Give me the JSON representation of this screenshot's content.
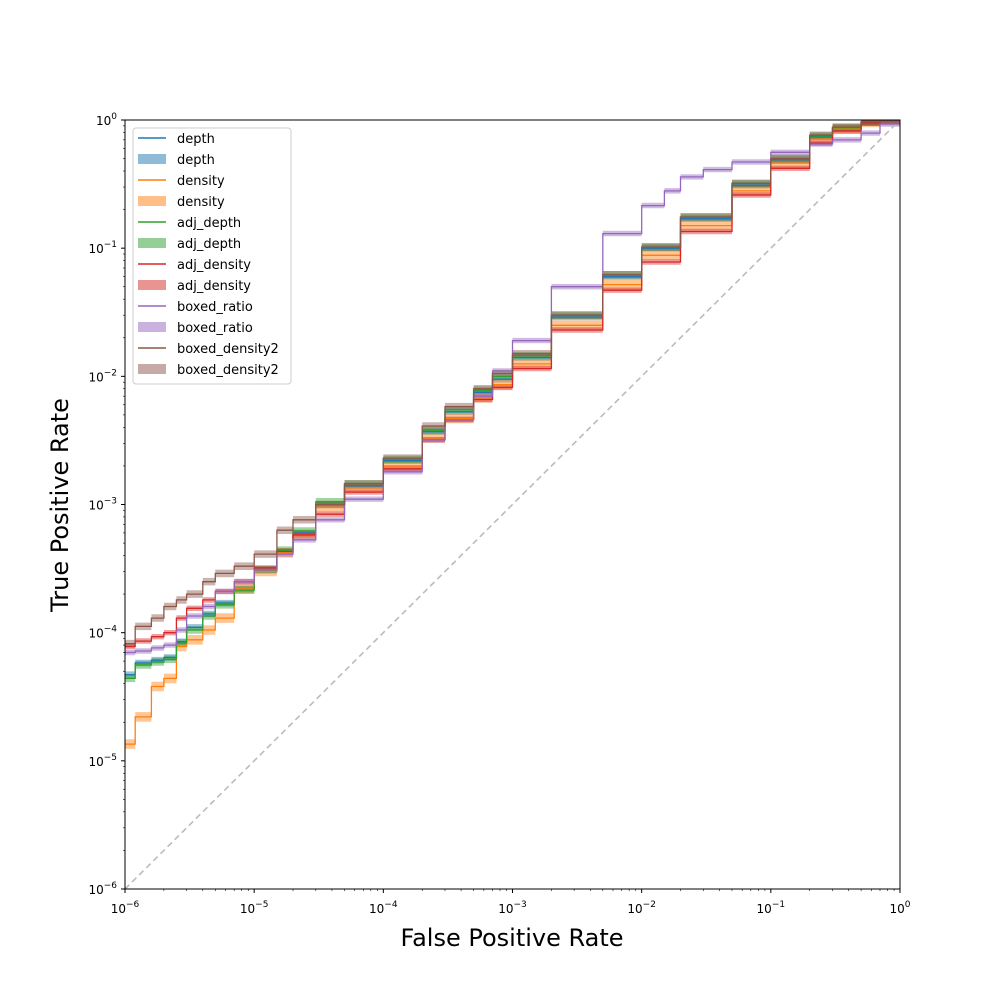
{
  "chart_data": {
    "type": "line",
    "xlabel": "False Positive Rate",
    "ylabel": "True Positive Rate",
    "xscale": "log",
    "yscale": "log",
    "xlim": [
      1e-06,
      1
    ],
    "ylim": [
      1e-06,
      1
    ],
    "grid": false,
    "legend_position": "top-left",
    "x_ticks": [
      {
        "value": 1e-06,
        "base": "10",
        "exp": "−6"
      },
      {
        "value": 1e-05,
        "base": "10",
        "exp": "−5"
      },
      {
        "value": 0.0001,
        "base": "10",
        "exp": "−4"
      },
      {
        "value": 0.001,
        "base": "10",
        "exp": "−3"
      },
      {
        "value": 0.01,
        "base": "10",
        "exp": "−2"
      },
      {
        "value": 0.1,
        "base": "10",
        "exp": "−1"
      },
      {
        "value": 1,
        "base": "10",
        "exp": "0"
      }
    ],
    "y_ticks": [
      {
        "value": 1e-06,
        "base": "10",
        "exp": "−6"
      },
      {
        "value": 1e-05,
        "base": "10",
        "exp": "−5"
      },
      {
        "value": 0.0001,
        "base": "10",
        "exp": "−4"
      },
      {
        "value": 0.001,
        "base": "10",
        "exp": "−3"
      },
      {
        "value": 0.01,
        "base": "10",
        "exp": "−2"
      },
      {
        "value": 0.1,
        "base": "10",
        "exp": "−1"
      },
      {
        "value": 1,
        "base": "10",
        "exp": "0"
      }
    ],
    "reference_line": {
      "x": [
        1e-06,
        1
      ],
      "y": [
        1e-06,
        1
      ],
      "color": "#bbbbbb",
      "style": "dashed"
    },
    "legend": [
      {
        "label": "depth",
        "kind": "line",
        "color": "#1f77b4"
      },
      {
        "label": "depth",
        "kind": "band",
        "color": "#1f77b4"
      },
      {
        "label": "density",
        "kind": "line",
        "color": "#ff7f0e"
      },
      {
        "label": "density",
        "kind": "band",
        "color": "#ff7f0e"
      },
      {
        "label": "adj_depth",
        "kind": "line",
        "color": "#2ca02c"
      },
      {
        "label": "adj_depth",
        "kind": "band",
        "color": "#2ca02c"
      },
      {
        "label": "adj_density",
        "kind": "line",
        "color": "#d62728"
      },
      {
        "label": "adj_density",
        "kind": "band",
        "color": "#d62728"
      },
      {
        "label": "boxed_ratio",
        "kind": "line",
        "color": "#9467bd"
      },
      {
        "label": "boxed_ratio",
        "kind": "band",
        "color": "#9467bd"
      },
      {
        "label": "boxed_density2",
        "kind": "line",
        "color": "#8c564b"
      },
      {
        "label": "boxed_density2",
        "kind": "band",
        "color": "#8c564b"
      }
    ],
    "series": [
      {
        "name": "depth",
        "color": "#1f77b4",
        "x": [
          1e-06,
          1.2e-06,
          1.6e-06,
          2e-06,
          2.5e-06,
          3e-06,
          4e-06,
          5e-06,
          7e-06,
          1e-05,
          1.5e-05,
          2e-05,
          3e-05,
          5e-05,
          0.0001,
          0.0002,
          0.0003,
          0.0005,
          0.0007,
          0.001,
          0.002,
          0.005,
          0.01,
          0.02,
          0.05,
          0.1,
          0.2,
          0.3,
          0.5,
          0.7,
          1
        ],
        "y": [
          4.7e-05,
          5.8e-05,
          6.1e-05,
          6.4e-05,
          8.5e-05,
          0.00011,
          0.00014,
          0.00017,
          0.00022,
          0.00031,
          0.00043,
          0.0006,
          0.001,
          0.0014,
          0.0022,
          0.0037,
          0.0053,
          0.0075,
          0.0095,
          0.014,
          0.029,
          0.06,
          0.1,
          0.17,
          0.31,
          0.49,
          0.74,
          0.86,
          0.96,
          0.99,
          1
        ],
        "band": 0.06
      },
      {
        "name": "density",
        "color": "#ff7f0e",
        "x": [
          1e-06,
          1.2e-06,
          1.6e-06,
          2e-06,
          2.5e-06,
          3e-06,
          4e-06,
          5e-06,
          7e-06,
          1e-05,
          1.5e-05,
          2e-05,
          3e-05,
          5e-05,
          0.0001,
          0.0002,
          0.0003,
          0.0005,
          0.0007,
          0.001,
          0.002,
          0.005,
          0.01,
          0.02,
          0.05,
          0.1,
          0.2,
          0.3,
          0.5,
          0.7,
          1
        ],
        "y": [
          1.35e-05,
          2.2e-05,
          3.8e-05,
          4.4e-05,
          7.8e-05,
          8.8e-05,
          0.000105,
          0.00013,
          0.00022,
          0.0003,
          0.00042,
          0.00058,
          0.00095,
          0.00135,
          0.002,
          0.0033,
          0.0047,
          0.0068,
          0.0086,
          0.0125,
          0.025,
          0.052,
          0.088,
          0.15,
          0.28,
          0.46,
          0.71,
          0.85,
          0.96,
          0.99,
          1
        ],
        "band": 0.09
      },
      {
        "name": "adj_depth",
        "color": "#2ca02c",
        "x": [
          1e-06,
          1.2e-06,
          1.6e-06,
          2e-06,
          2.5e-06,
          3e-06,
          4e-06,
          5e-06,
          7e-06,
          1e-05,
          1.5e-05,
          2e-05,
          3e-05,
          5e-05,
          0.0001,
          0.0002,
          0.0003,
          0.0005,
          0.0007,
          0.001,
          0.002,
          0.005,
          0.01,
          0.02,
          0.05,
          0.1,
          0.2,
          0.3,
          0.5,
          0.7,
          1
        ],
        "y": [
          4.4e-05,
          5.6e-05,
          5.9e-05,
          6.2e-05,
          8.3e-05,
          0.000105,
          0.000135,
          0.000165,
          0.000215,
          0.00031,
          0.00044,
          0.00062,
          0.00105,
          0.00145,
          0.00225,
          0.0038,
          0.0055,
          0.0078,
          0.01,
          0.0145,
          0.03,
          0.062,
          0.102,
          0.175,
          0.32,
          0.5,
          0.75,
          0.87,
          0.96,
          0.99,
          1
        ],
        "band": 0.07
      },
      {
        "name": "adj_density",
        "color": "#d62728",
        "x": [
          1e-06,
          1.2e-06,
          1.6e-06,
          2e-06,
          2.5e-06,
          3e-06,
          4e-06,
          5e-06,
          7e-06,
          1e-05,
          1.5e-05,
          2e-05,
          3e-05,
          5e-05,
          0.0001,
          0.0002,
          0.0003,
          0.0005,
          0.0007,
          0.001,
          0.002,
          0.005,
          0.01,
          0.02,
          0.05,
          0.1,
          0.2,
          0.3,
          0.5,
          0.7,
          1
        ],
        "y": [
          7.8e-05,
          8.6e-05,
          9.3e-05,
          0.0001,
          0.00013,
          0.000155,
          0.00018,
          0.00021,
          0.00025,
          0.00032,
          0.00043,
          0.00058,
          0.00084,
          0.00125,
          0.0019,
          0.0032,
          0.0046,
          0.0066,
          0.0082,
          0.0115,
          0.023,
          0.047,
          0.078,
          0.135,
          0.26,
          0.42,
          0.66,
          0.82,
          0.95,
          0.99,
          1
        ],
        "band": 0.05
      },
      {
        "name": "boxed_ratio",
        "color": "#9467bd",
        "x": [
          1e-06,
          1.2e-06,
          1.6e-06,
          2e-06,
          2.5e-06,
          3e-06,
          4e-06,
          5e-06,
          7e-06,
          1e-05,
          1.5e-05,
          2e-05,
          3e-05,
          5e-05,
          0.0001,
          0.0002,
          0.0003,
          0.0005,
          0.0007,
          0.001,
          0.002,
          0.005,
          0.01,
          0.015,
          0.02,
          0.03,
          0.05,
          0.1,
          0.2,
          0.3,
          0.5,
          0.7,
          1
        ],
        "y": [
          7e-05,
          7.2e-05,
          7.6e-05,
          8e-05,
          0.000105,
          0.000135,
          0.00016,
          0.00021,
          0.00025,
          0.00031,
          0.00041,
          0.00053,
          0.00076,
          0.0011,
          0.0018,
          0.0032,
          0.0046,
          0.007,
          0.011,
          0.019,
          0.05,
          0.13,
          0.215,
          0.28,
          0.36,
          0.41,
          0.47,
          0.56,
          0.65,
          0.7,
          0.79,
          0.93,
          1
        ],
        "band": 0.05
      },
      {
        "name": "boxed_density2",
        "color": "#8c564b",
        "x": [
          1e-06,
          1.2e-06,
          1.6e-06,
          2e-06,
          2.5e-06,
          3e-06,
          4e-06,
          5e-06,
          7e-06,
          1e-05,
          1.5e-05,
          2e-05,
          3e-05,
          5e-05,
          0.0001,
          0.0002,
          0.0003,
          0.0005,
          0.0007,
          0.001,
          0.002,
          0.005,
          0.01,
          0.02,
          0.05,
          0.1,
          0.2,
          0.3,
          0.5,
          0.7,
          1
        ],
        "y": [
          8.2e-05,
          0.000112,
          0.00013,
          0.00016,
          0.00018,
          0.0002,
          0.00025,
          0.00029,
          0.00033,
          0.00041,
          0.00063,
          0.00076,
          0.001,
          0.00145,
          0.0023,
          0.0041,
          0.0058,
          0.008,
          0.0105,
          0.015,
          0.03,
          0.062,
          0.102,
          0.175,
          0.32,
          0.5,
          0.76,
          0.88,
          0.97,
          0.99,
          1
        ],
        "band": 0.07
      }
    ]
  }
}
